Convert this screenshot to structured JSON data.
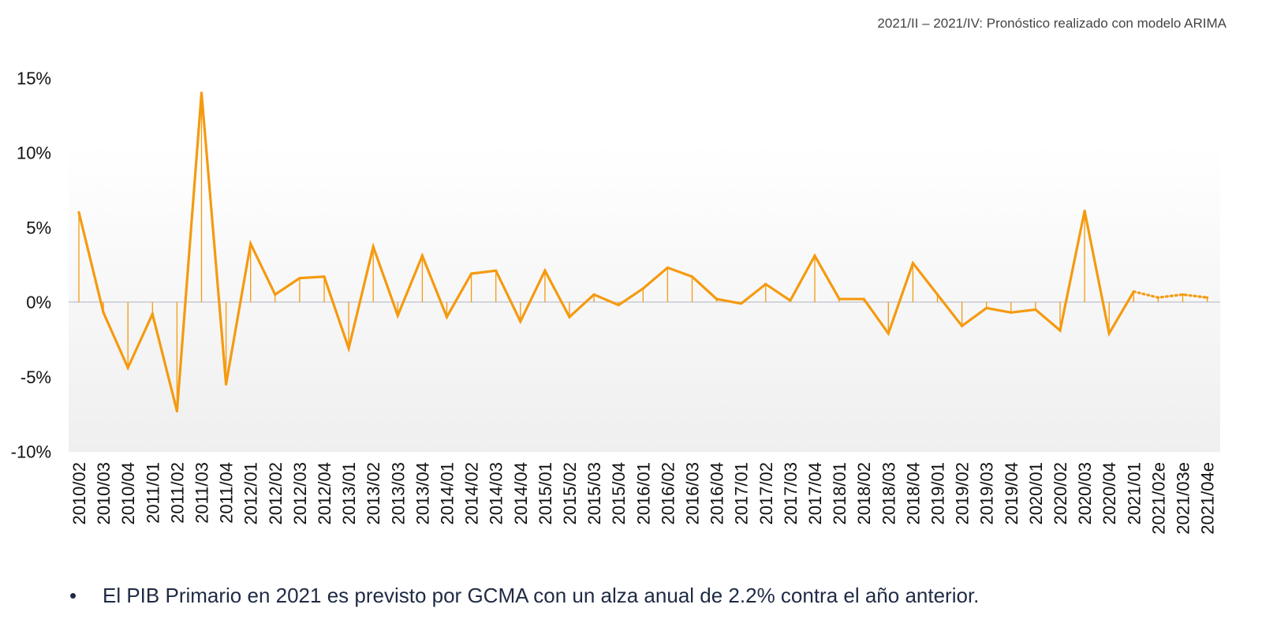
{
  "note": "2021/II – 2021/IV:  Pronóstico realizado con modelo ARIMA",
  "bullet": {
    "marker": "•",
    "text": "El PIB Primario en 2021 es previsto por GCMA con un alza anual de 2.2% contra el año anterior."
  },
  "colors": {
    "line": "#f59a0f",
    "zero_line": "#c9c9d6",
    "axis_text": "#111111",
    "bullet_text": "#1f2a44"
  },
  "chart_data": {
    "type": "line",
    "categories": [
      "2010/02",
      "2010/03",
      "2010/04",
      "2011/01",
      "2011/02",
      "2011/03",
      "2011/04",
      "2012/01",
      "2012/02",
      "2012/03",
      "2012/04",
      "2013/01",
      "2013/02",
      "2013/03",
      "2013/04",
      "2014/01",
      "2014/02",
      "2014/03",
      "2014/04",
      "2015/01",
      "2015/02",
      "2015/03",
      "2015/04",
      "2016/01",
      "2016/02",
      "2016/03",
      "2016/04",
      "2017/01",
      "2017/02",
      "2017/03",
      "2017/04",
      "2018/01",
      "2018/02",
      "2018/03",
      "2018/04",
      "2019/01",
      "2019/02",
      "2019/03",
      "2019/04",
      "2020/01",
      "2020/02",
      "2020/03",
      "2020/04",
      "2021/01",
      "2021/02e",
      "2021/03e",
      "2021/04e"
    ],
    "values": [
      6.0,
      -0.7,
      -4.4,
      -0.8,
      -7.3,
      14.0,
      -5.5,
      3.9,
      0.5,
      1.6,
      1.7,
      -3.1,
      3.7,
      -0.9,
      3.1,
      -1.0,
      1.9,
      2.1,
      -1.3,
      2.1,
      -1.0,
      0.5,
      -0.2,
      0.9,
      2.3,
      1.7,
      0.2,
      -0.1,
      1.2,
      0.1,
      3.1,
      0.2,
      0.2,
      -2.1,
      2.6,
      0.5,
      -1.6,
      -0.4,
      -0.7,
      -0.5,
      -1.9,
      6.1,
      -2.1,
      0.7,
      0.3,
      0.5,
      0.3
    ],
    "forecast_start_index": 43,
    "y_ticks": [
      "15%",
      "10%",
      "5%",
      "0%",
      "-5%",
      "-10%"
    ],
    "y_tick_values": [
      15,
      10,
      5,
      0,
      -5,
      -10
    ],
    "ylim": [
      -10,
      15
    ],
    "grid": false,
    "drop_lines": true,
    "legend": "none"
  }
}
